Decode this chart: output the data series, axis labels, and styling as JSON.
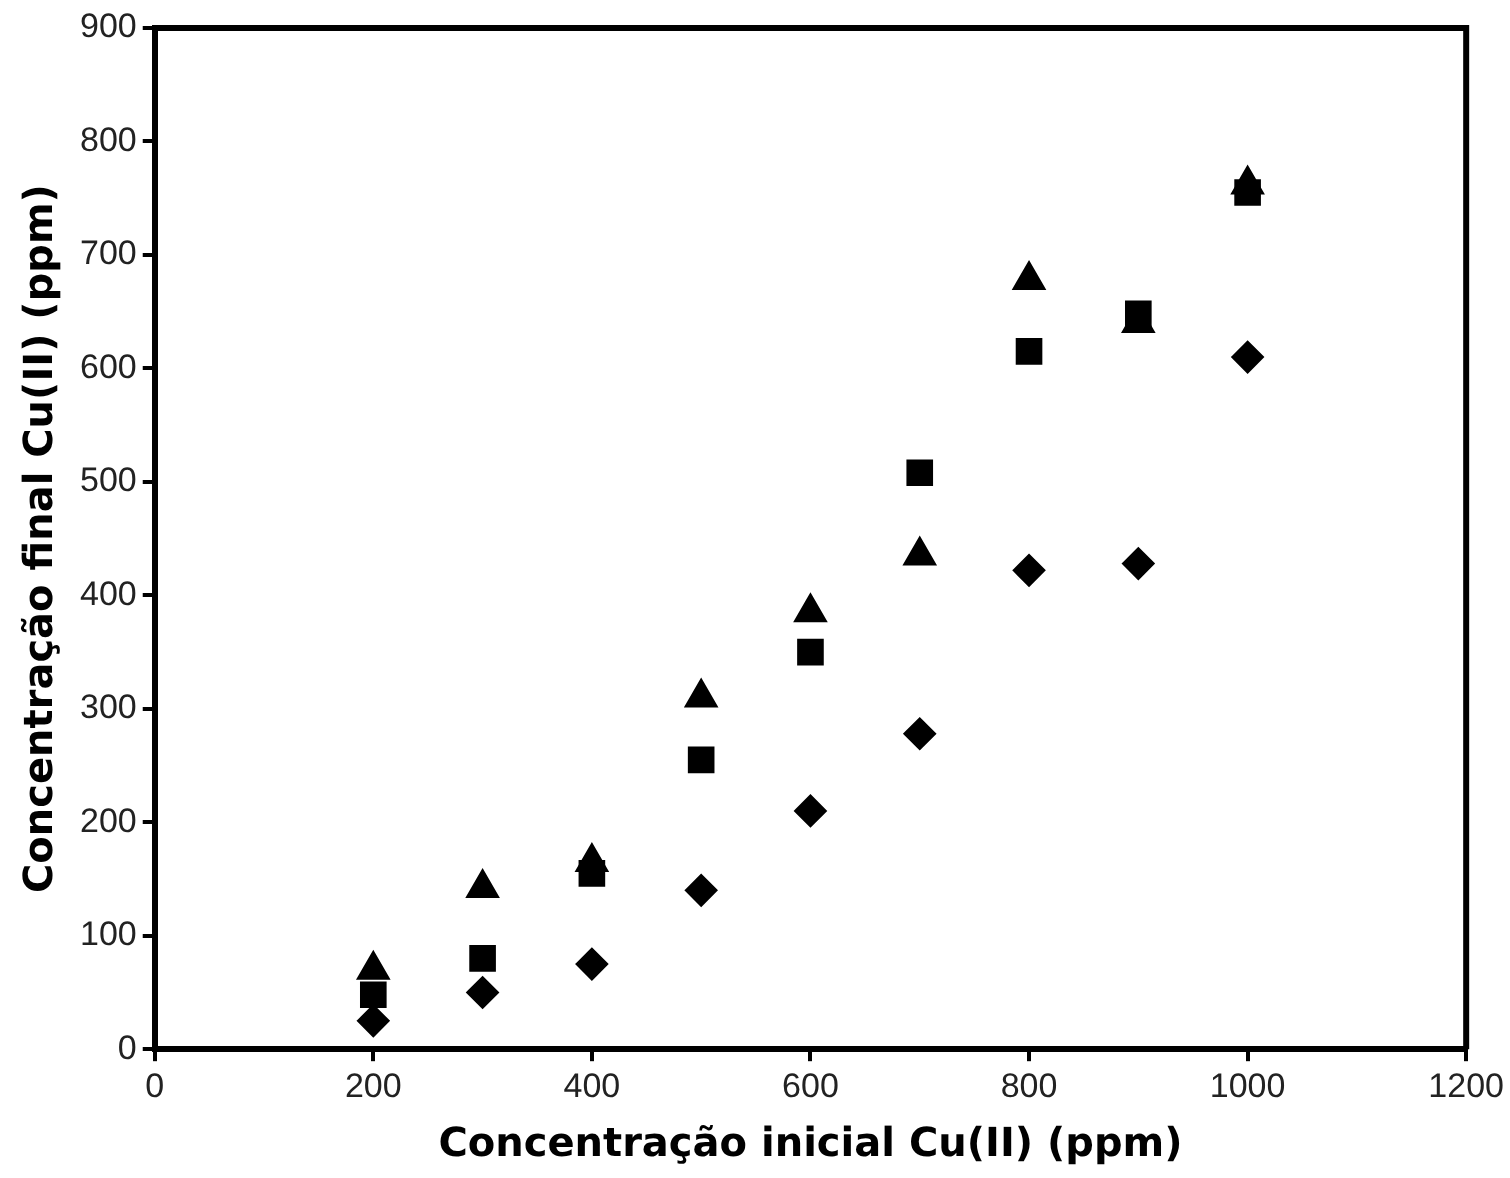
{
  "chart_data": {
    "type": "scatter",
    "xlabel": "Concentração inicial Cu(II) (ppm)",
    "ylabel": "Concentração final Cu(II) (ppm)",
    "x": [
      200,
      300,
      400,
      500,
      600,
      700,
      800,
      900,
      1000
    ],
    "series": [
      {
        "color": "#000000",
        "marker": "diamond",
        "values": [
          25,
          50,
          75,
          140,
          210,
          278,
          422,
          428,
          610
        ]
      },
      {
        "color": "#000000",
        "marker": "square",
        "values": [
          48,
          80,
          155,
          255,
          350,
          508,
          615,
          648,
          755
        ]
      },
      {
        "color": "#000000",
        "marker": "triangle",
        "values": [
          70,
          142,
          165,
          310,
          385,
          435,
          678,
          640,
          762
        ]
      }
    ],
    "xlim": [
      0,
      1200
    ],
    "xticks": [
      0,
      200,
      400,
      600,
      800,
      1000,
      1200
    ],
    "ylim": [
      0,
      900
    ],
    "yticks": [
      0,
      100,
      200,
      300,
      400,
      500,
      600,
      700,
      800,
      900
    ],
    "grid": false,
    "legend": false
  }
}
